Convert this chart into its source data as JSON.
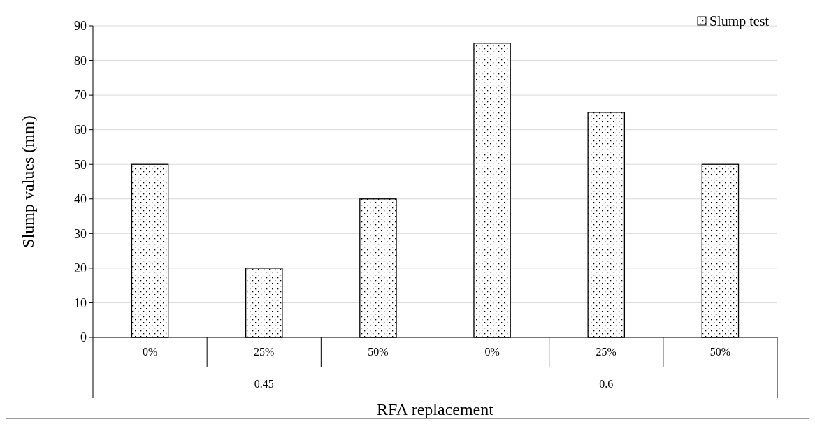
{
  "chart_data": {
    "type": "bar",
    "xlabel": "RFA replacement",
    "ylabel": "Slump values (mm)",
    "categories": [
      "0%",
      "25%",
      "50%",
      "0%",
      "25%",
      "50%"
    ],
    "series": [
      {
        "name": "Slump test",
        "color": "#000000",
        "values": [
          50,
          20,
          40,
          85,
          65,
          50
        ]
      }
    ],
    "annotations": [
      "0.45",
      "0.6"
    ],
    "ylim": [
      0,
      90
    ],
    "yticks": [
      0,
      10,
      20,
      30,
      40,
      50,
      60,
      70,
      80,
      90
    ],
    "grid": "y",
    "legend": "top right"
  }
}
